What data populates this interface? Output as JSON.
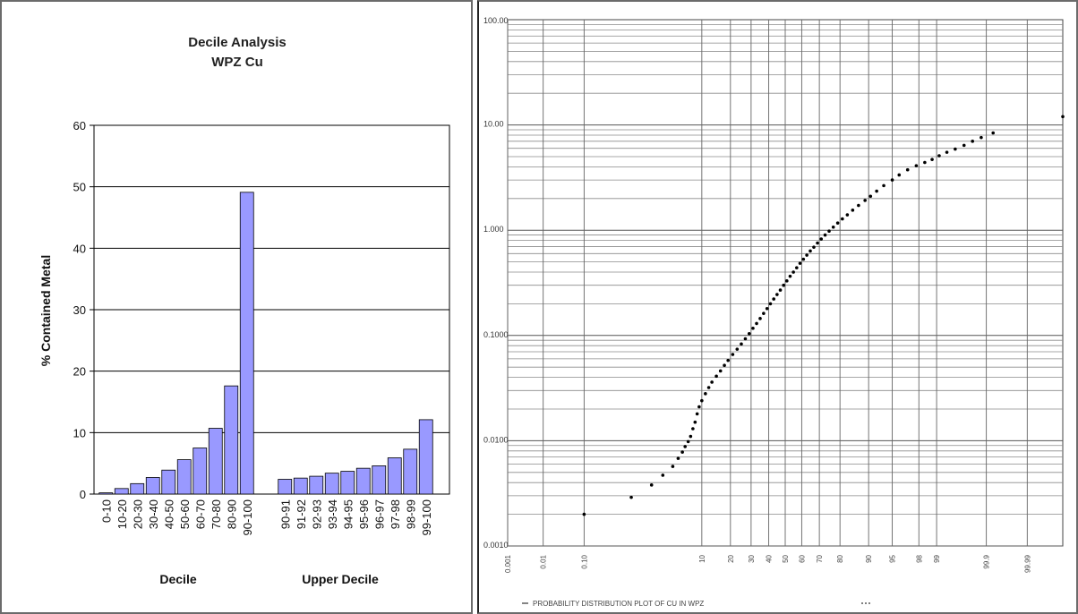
{
  "chart_data": [
    {
      "type": "bar",
      "title": "Decile Analysis",
      "subtitle": "WPZ Cu",
      "ylabel": "% Contained Metal",
      "ylim": [
        0,
        60
      ],
      "yticks": [
        0,
        10,
        20,
        30,
        40,
        50,
        60
      ],
      "grid": true,
      "bar_color": "#9999ff",
      "groups": [
        {
          "label": "Decile",
          "categories": [
            "0-10",
            "10-20",
            "20-30",
            "30-40",
            "40-50",
            "50-60",
            "60-70",
            "70-80",
            "80-90",
            "90-100"
          ],
          "values": [
            0.2,
            0.9,
            1.7,
            2.7,
            3.9,
            5.6,
            7.5,
            10.7,
            17.6,
            49.1
          ]
        },
        {
          "label": "Upper Decile",
          "categories": [
            "90-91",
            "91-92",
            "92-93",
            "93-94",
            "94-95",
            "95-96",
            "96-97",
            "97-98",
            "98-99",
            "99-100"
          ],
          "values": [
            2.4,
            2.6,
            2.9,
            3.4,
            3.7,
            4.2,
            4.6,
            5.9,
            7.3,
            12.1
          ]
        }
      ]
    },
    {
      "type": "scatter",
      "y_scale": "log",
      "x_scale": "probability",
      "ylim": [
        0.001,
        100
      ],
      "y_tick_labels": [
        "100.00",
        "10.00",
        "1.000",
        "0.1000",
        "0.0100",
        "0.0010"
      ],
      "y_tick_values": [
        100,
        10,
        1,
        0.1,
        0.01,
        0.001
      ],
      "x_tick_labels": [
        "0.001",
        "0.01",
        "0.10",
        "10",
        "20",
        "30",
        "40",
        "50",
        "60",
        "70",
        "80",
        "90",
        "95",
        "98",
        "99",
        "99.9",
        "99.99"
      ],
      "x_tick_values": [
        0.001,
        0.01,
        0.1,
        10,
        20,
        30,
        40,
        50,
        60,
        70,
        80,
        90,
        95,
        98,
        99,
        99.9,
        99.99
      ],
      "legend": "PROBABILITY DISTRIBUTION PLOT OF CU IN WPZ",
      "legend_position": "bottom-left",
      "marker_color": "#000000",
      "points": [
        [
          0.1,
          0.002
        ],
        [
          0.9,
          0.0029
        ],
        [
          2.0,
          0.0038
        ],
        [
          3.0,
          0.0047
        ],
        [
          4.2,
          0.0057
        ],
        [
          5.0,
          0.0068
        ],
        [
          5.7,
          0.0078
        ],
        [
          6.2,
          0.0088
        ],
        [
          6.8,
          0.0098
        ],
        [
          7.3,
          0.011
        ],
        [
          7.8,
          0.013
        ],
        [
          8.3,
          0.015
        ],
        [
          8.8,
          0.018
        ],
        [
          9.3,
          0.021
        ],
        [
          10.0,
          0.024
        ],
        [
          11.0,
          0.028
        ],
        [
          12.0,
          0.032
        ],
        [
          13.0,
          0.036
        ],
        [
          14.5,
          0.041
        ],
        [
          16.0,
          0.046
        ],
        [
          17.5,
          0.052
        ],
        [
          19.0,
          0.058
        ],
        [
          21.0,
          0.066
        ],
        [
          23.0,
          0.074
        ],
        [
          25.0,
          0.083
        ],
        [
          27.0,
          0.093
        ],
        [
          29.0,
          0.104
        ],
        [
          31.0,
          0.117
        ],
        [
          33.0,
          0.13
        ],
        [
          35.0,
          0.145
        ],
        [
          37.0,
          0.162
        ],
        [
          39.0,
          0.18
        ],
        [
          41.0,
          0.2
        ],
        [
          43.0,
          0.222
        ],
        [
          45.0,
          0.245
        ],
        [
          47.0,
          0.27
        ],
        [
          49.0,
          0.3
        ],
        [
          51.0,
          0.33
        ],
        [
          53.0,
          0.365
        ],
        [
          55.0,
          0.4
        ],
        [
          57.0,
          0.44
        ],
        [
          59.0,
          0.485
        ],
        [
          61.0,
          0.53
        ],
        [
          63.0,
          0.58
        ],
        [
          65.0,
          0.635
        ],
        [
          67.0,
          0.69
        ],
        [
          69.0,
          0.755
        ],
        [
          71.0,
          0.825
        ],
        [
          73.0,
          0.9
        ],
        [
          75.0,
          0.98
        ],
        [
          77.0,
          1.07
        ],
        [
          79.0,
          1.17
        ],
        [
          81.0,
          1.28
        ],
        [
          83.0,
          1.4
        ],
        [
          85.0,
          1.55
        ],
        [
          87.0,
          1.72
        ],
        [
          89.0,
          1.92
        ],
        [
          90.5,
          2.1
        ],
        [
          92.0,
          2.35
        ],
        [
          93.5,
          2.65
        ],
        [
          95.0,
          3.0
        ],
        [
          96.0,
          3.35
        ],
        [
          97.0,
          3.75
        ],
        [
          97.8,
          4.1
        ],
        [
          98.4,
          4.4
        ],
        [
          98.8,
          4.7
        ],
        [
          99.1,
          5.1
        ],
        [
          99.35,
          5.5
        ],
        [
          99.55,
          5.9
        ],
        [
          99.7,
          6.4
        ],
        [
          99.8,
          7.0
        ],
        [
          99.87,
          7.6
        ],
        [
          99.93,
          8.4
        ],
        [
          99.999,
          12.0
        ]
      ]
    }
  ]
}
